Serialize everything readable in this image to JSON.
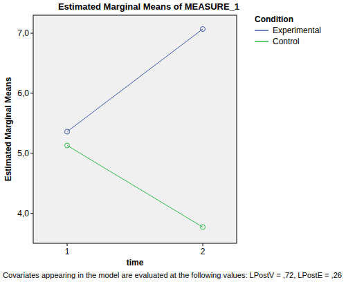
{
  "chart_data": {
    "type": "line",
    "title": "Estimated Marginal Means of MEASURE_1",
    "x_label": "time",
    "y_label": "Estimated Marginal Means",
    "legend_title": "Condition",
    "footnote": "Covariates appearing in the model are evaluated at the following values: LPostV = ,72, LPostE = ,26",
    "x": [
      1,
      2
    ],
    "series": [
      {
        "name": "Experimental",
        "color": "#3e58ac",
        "values": [
          5.36,
          7.07
        ]
      },
      {
        "name": "Control",
        "color": "#2eb848",
        "values": [
          5.13,
          3.77
        ]
      }
    ],
    "xlim": [
      0.75,
      2.25
    ],
    "xticks": [
      1,
      2
    ],
    "ylim": [
      3.5,
      7.3
    ],
    "yticks": [
      {
        "value": 4,
        "label": "4,0"
      },
      {
        "value": 5,
        "label": "5,0"
      },
      {
        "value": 6,
        "label": "6,0"
      },
      {
        "value": 7,
        "label": "7,0"
      }
    ],
    "grid": false,
    "legend": "right",
    "marker": "circle"
  }
}
